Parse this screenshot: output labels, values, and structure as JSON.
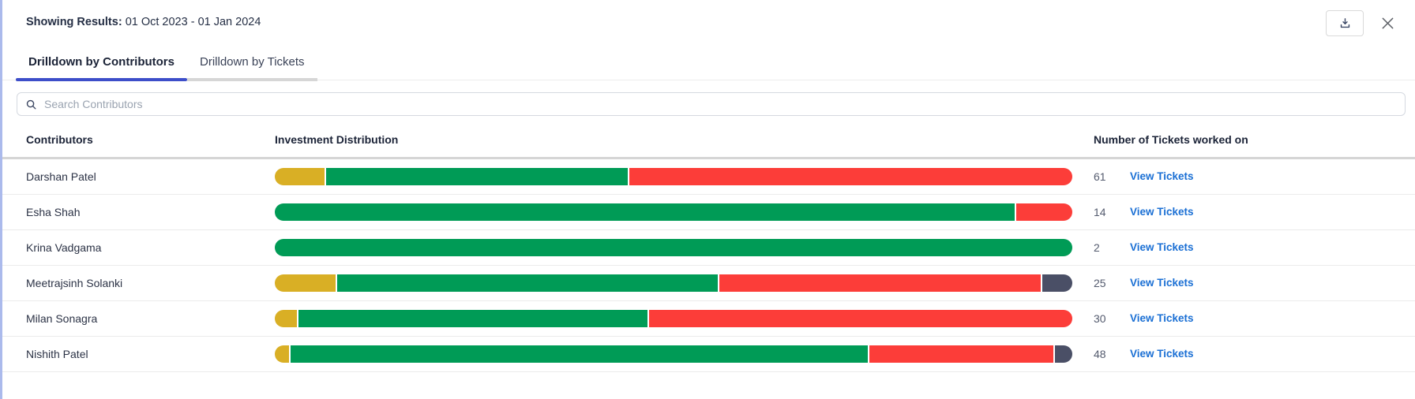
{
  "header": {
    "label": "Showing Results:",
    "date_range": "01 Oct 2023 - 01 Jan 2024"
  },
  "icons": {
    "download": "download-icon",
    "close": "close-icon",
    "search": "search-icon"
  },
  "tabs": [
    {
      "label": "Drilldown by Contributors",
      "active": true
    },
    {
      "label": "Drilldown by Tickets",
      "active": false
    }
  ],
  "search": {
    "placeholder": "Search Contributors"
  },
  "table": {
    "columns": [
      "Contributors",
      "Investment Distribution",
      "Number of Tickets worked on"
    ],
    "link_label": "View Tickets",
    "rows": [
      {
        "name": "Darshan Patel",
        "tickets": "61",
        "segments": [
          {
            "color": "gold",
            "pct": 6.3
          },
          {
            "color": "green",
            "pct": 37.9
          },
          {
            "color": "red",
            "pct": 55.8
          }
        ]
      },
      {
        "name": "Esha Shah",
        "tickets": "14",
        "segments": [
          {
            "color": "green",
            "pct": 93
          },
          {
            "color": "red",
            "pct": 7
          }
        ]
      },
      {
        "name": "Krina Vadgama",
        "tickets": "2",
        "segments": [
          {
            "color": "green",
            "pct": 100
          }
        ]
      },
      {
        "name": "Meetrajsinh Solanki",
        "tickets": "25",
        "segments": [
          {
            "color": "gold",
            "pct": 7.7
          },
          {
            "color": "green",
            "pct": 48
          },
          {
            "color": "red",
            "pct": 40.5
          },
          {
            "color": "slate",
            "pct": 3.8
          }
        ]
      },
      {
        "name": "Milan Sonagra",
        "tickets": "30",
        "segments": [
          {
            "color": "gold",
            "pct": 2.8
          },
          {
            "color": "green",
            "pct": 43.9
          },
          {
            "color": "red",
            "pct": 53.3
          }
        ]
      },
      {
        "name": "Nishith Patel",
        "tickets": "48",
        "segments": [
          {
            "color": "gold",
            "pct": 1.8
          },
          {
            "color": "green",
            "pct": 72.8
          },
          {
            "color": "red",
            "pct": 23.2
          },
          {
            "color": "slate",
            "pct": 2.2
          }
        ]
      }
    ]
  },
  "colors": {
    "gold": "#d9af25",
    "green": "#009b56",
    "red": "#fc3d39",
    "slate": "#4a4f66",
    "link_blue": "#1a6fd4",
    "tab_active_underline": "#3d4ec9",
    "left_border": "#abbaec"
  }
}
